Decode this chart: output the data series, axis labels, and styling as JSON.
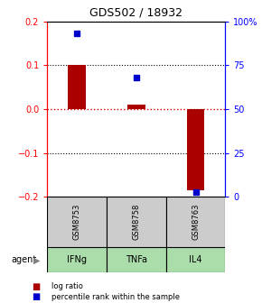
{
  "title": "GDS502 / 18932",
  "samples": [
    "GSM8753",
    "GSM8758",
    "GSM8763"
  ],
  "agents": [
    "IFNg",
    "TNFa",
    "IL4"
  ],
  "log_ratios": [
    0.1,
    0.01,
    -0.185
  ],
  "percentile_ranks": [
    93,
    68,
    3
  ],
  "ylim_left": [
    -0.2,
    0.2
  ],
  "ylim_right": [
    0,
    100
  ],
  "yticks_left": [
    -0.2,
    -0.1,
    0,
    0.1,
    0.2
  ],
  "yticks_right": [
    0,
    25,
    50,
    75,
    100
  ],
  "ytick_labels_right": [
    "0",
    "25",
    "50",
    "75",
    "100%"
  ],
  "bar_color": "#aa0000",
  "dot_color": "#0000cc",
  "hline_color_zero": "#cc0000",
  "hline_color_grid": "#000000",
  "gsm_bg_color": "#cccccc",
  "agent_bg_color": "#aaddaa",
  "agent_label": "agent",
  "legend_bar_label": "log ratio",
  "legend_dot_label": "percentile rank within the sample",
  "bar_width": 0.3
}
